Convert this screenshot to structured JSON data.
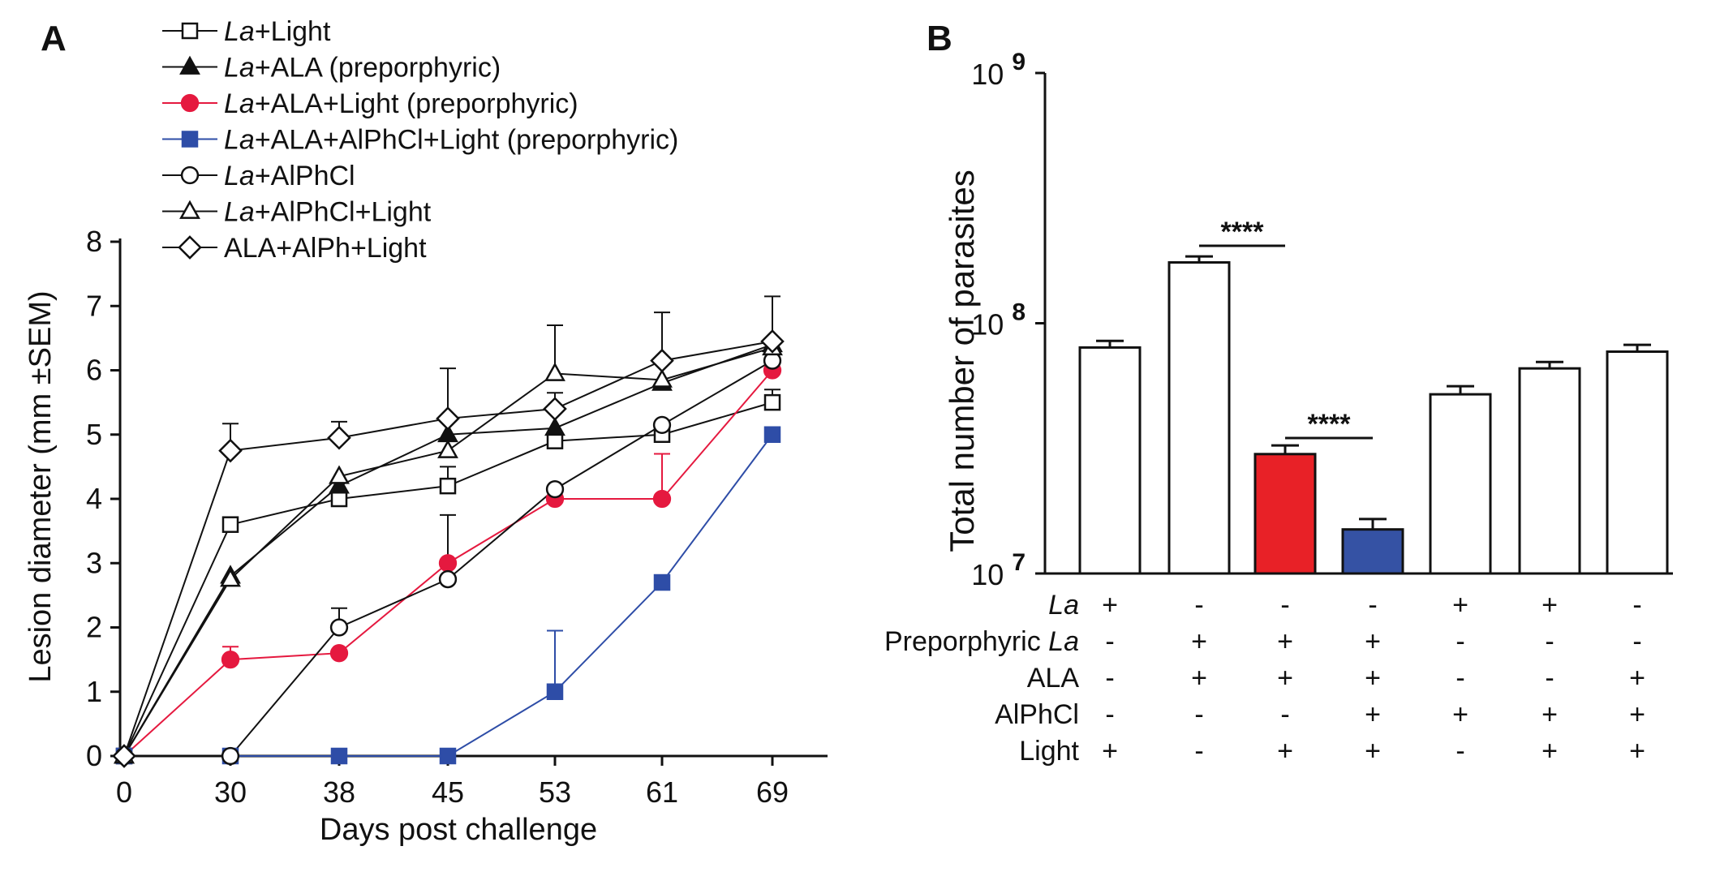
{
  "panels": {
    "a_label": "A",
    "b_label": "B"
  },
  "chart_data": [
    {
      "type": "line",
      "panel": "A",
      "xlabel": "Days post challenge",
      "ylabel": "Lesion diameter (mm ±SEM)",
      "x": [
        0,
        30,
        38,
        45,
        53,
        61,
        69
      ],
      "x_tick_labels": [
        "0",
        "30",
        "38",
        "45",
        "53",
        "61",
        "69"
      ],
      "ylim": [
        0,
        8
      ],
      "y_tick_labels": [
        "0",
        "1",
        "2",
        "3",
        "4",
        "5",
        "6",
        "7",
        "8"
      ],
      "series": [
        {
          "name": "La+Light",
          "italic": "La",
          "rest": "+Light",
          "marker": "open-square",
          "color": "#111111",
          "fill": "#ffffff",
          "values": [
            0,
            3.6,
            4.0,
            4.2,
            4.9,
            5.0,
            5.5
          ],
          "err": [
            0,
            0,
            0,
            0.3,
            0.45,
            0,
            0.2
          ]
        },
        {
          "name": "La+ALA (preporphyric)",
          "italic": "La",
          "rest": "+ALA (preporphyric)",
          "marker": "filled-triangle",
          "color": "#111111",
          "fill": "#111111",
          "values": [
            0,
            2.8,
            4.2,
            5.0,
            5.1,
            5.8,
            6.4
          ],
          "err": [
            0,
            0,
            0,
            0,
            0,
            0,
            0
          ]
        },
        {
          "name": "La+ALA+Light (preporphyric)",
          "italic": "La",
          "rest": "+ALA+Light (preporphyric)",
          "marker": "filled-circle",
          "color": "#e5193f",
          "fill": "#e5193f",
          "values": [
            0,
            1.5,
            1.6,
            3.0,
            4.0,
            4.0,
            6.0
          ],
          "err": [
            0,
            0.2,
            0,
            0,
            0,
            0.7,
            0
          ]
        },
        {
          "name": "La+ALA+AlPhCl+Light (preporphyric)",
          "italic": "La",
          "rest": "+ALA+AlPhCl+Light (preporphyric)",
          "marker": "filled-square",
          "color": "#2e4da7",
          "fill": "#2e4da7",
          "values": [
            0,
            0,
            0,
            0,
            1.0,
            2.7,
            5.0
          ],
          "err": [
            0,
            0,
            0,
            0,
            0.95,
            0,
            0
          ]
        },
        {
          "name": "La+AlPhCl",
          "italic": "La",
          "rest": "+AlPhCl",
          "marker": "open-circle",
          "color": "#111111",
          "fill": "#ffffff",
          "values": [
            0,
            0,
            2.0,
            2.75,
            4.15,
            5.15,
            6.15
          ],
          "err": [
            0,
            0,
            0.3,
            1.0,
            0,
            0,
            0
          ]
        },
        {
          "name": "La+AlPhCl+Light",
          "italic": "La",
          "rest": "+AlPhCl+Light",
          "marker": "open-triangle",
          "color": "#111111",
          "fill": "#ffffff",
          "values": [
            0,
            2.75,
            4.35,
            4.75,
            5.95,
            5.85,
            6.35
          ],
          "err": [
            0,
            0,
            0,
            0,
            0.75,
            0,
            0
          ]
        },
        {
          "name": "ALA+AlPh+Light",
          "italic": "",
          "rest": "ALA+AlPh+Light",
          "marker": "open-diamond",
          "color": "#111111",
          "fill": "#ffffff",
          "values": [
            0,
            4.75,
            4.95,
            5.25,
            5.4,
            6.15,
            6.45
          ],
          "err": [
            0,
            0.42,
            0.25,
            0.78,
            0.25,
            0.75,
            0.7
          ]
        }
      ]
    },
    {
      "type": "bar",
      "panel": "B",
      "ylabel": "Total number of parasites",
      "yscale": "log",
      "ylim": [
        10000000,
        1000000000
      ],
      "y_ticks": [
        {
          "base": "10",
          "exp": "7",
          "value": 10000000
        },
        {
          "base": "10",
          "exp": "8",
          "value": 100000000
        },
        {
          "base": "10",
          "exp": "9",
          "value": 1000000000
        }
      ],
      "values": [
        80000000,
        175000000,
        30000000,
        15000000,
        52000000,
        66000000,
        77000000
      ],
      "err": [
        5000000,
        10000000,
        2500000,
        1500000,
        4000000,
        4000000,
        5000000
      ],
      "bar_colors": [
        "#ffffff",
        "#ffffff",
        "#e82127",
        "#3552a4",
        "#ffffff",
        "#ffffff",
        "#ffffff"
      ],
      "significance": [
        {
          "bars": [
            1,
            2
          ],
          "label": "****"
        },
        {
          "bars": [
            2,
            3
          ],
          "label": "****"
        }
      ],
      "condition_table": [
        {
          "label": "La",
          "italic": "La",
          "rest": "",
          "cells": [
            "+",
            "-",
            "-",
            "-",
            "+",
            "+",
            "-"
          ]
        },
        {
          "label": "Preporphyric La",
          "italic": "La",
          "rest": "Preporphyric ",
          "italic_last": true,
          "cells": [
            "-",
            "+",
            "+",
            "+",
            "-",
            "-",
            "-"
          ]
        },
        {
          "label": "ALA",
          "italic": "",
          "rest": "ALA",
          "cells": [
            "-",
            "+",
            "+",
            "+",
            "-",
            "-",
            "+"
          ]
        },
        {
          "label": "AlPhCl",
          "italic": "",
          "rest": "AlPhCl",
          "cells": [
            "-",
            "-",
            "-",
            "+",
            "+",
            "+",
            "+"
          ]
        },
        {
          "label": "Light",
          "italic": "",
          "rest": "Light",
          "cells": [
            "+",
            "-",
            "+",
            "+",
            "-",
            "+",
            "+"
          ]
        }
      ]
    }
  ]
}
